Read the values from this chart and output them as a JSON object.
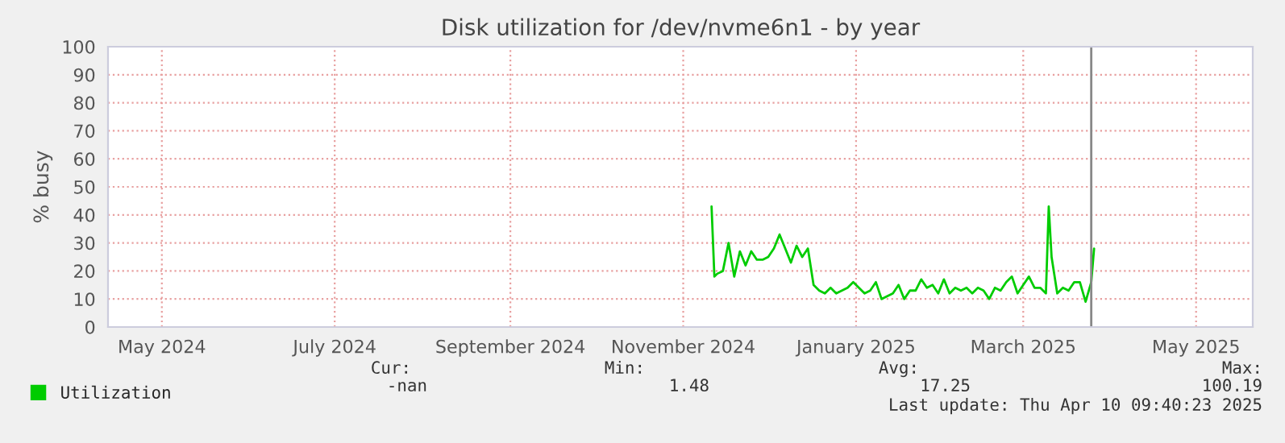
{
  "chart_data": {
    "type": "line",
    "title": "Disk utilization for /dev/nvme6n1 - by year",
    "ylabel": "% busy",
    "x": [
      "2024-11-25",
      "2024-11-26",
      "2024-11-27",
      "2024-11-29",
      "2024-12-01",
      "2024-12-03",
      "2024-12-05",
      "2024-12-07",
      "2024-12-09",
      "2024-12-11",
      "2024-12-13",
      "2024-12-15",
      "2024-12-17",
      "2024-12-19",
      "2024-12-21",
      "2024-12-23",
      "2024-12-25",
      "2024-12-27",
      "2024-12-29",
      "2024-12-31",
      "2025-01-02",
      "2025-01-04",
      "2025-01-06",
      "2025-01-08",
      "2025-01-10",
      "2025-01-12",
      "2025-01-14",
      "2025-01-16",
      "2025-01-18",
      "2025-01-20",
      "2025-01-22",
      "2025-01-24",
      "2025-01-26",
      "2025-01-28",
      "2025-01-30",
      "2025-02-01",
      "2025-02-03",
      "2025-02-05",
      "2025-02-07",
      "2025-02-09",
      "2025-02-11",
      "2025-02-13",
      "2025-02-15",
      "2025-02-17",
      "2025-02-19",
      "2025-02-21",
      "2025-02-23",
      "2025-02-25",
      "2025-02-27",
      "2025-03-01",
      "2025-03-03",
      "2025-03-05",
      "2025-03-07",
      "2025-03-09",
      "2025-03-11",
      "2025-03-13",
      "2025-03-15",
      "2025-03-17",
      "2025-03-19",
      "2025-03-21",
      "2025-03-23",
      "2025-03-24",
      "2025-03-25",
      "2025-03-27",
      "2025-03-29",
      "2025-03-31",
      "2025-04-02",
      "2025-04-04",
      "2025-04-06",
      "2025-04-08",
      "2025-04-09"
    ],
    "series": [
      {
        "name": "Utilization",
        "color": "#00cc00",
        "values": [
          43,
          18,
          19,
          20,
          30,
          18,
          27,
          22,
          27,
          24,
          24,
          25,
          28,
          33,
          28,
          23,
          29,
          25,
          28,
          15,
          13,
          12,
          14,
          12,
          13,
          14,
          16,
          14,
          12,
          13,
          16,
          10,
          11,
          12,
          15,
          10,
          13,
          13,
          17,
          14,
          15,
          12,
          17,
          12,
          14,
          13,
          14,
          12,
          14,
          13,
          10,
          14,
          13,
          16,
          18,
          12,
          15,
          18,
          14,
          14,
          12,
          43,
          25,
          12,
          14,
          13,
          16,
          16,
          9,
          16,
          28
        ]
      }
    ],
    "xlim": [
      "2024-04-26",
      "2025-06-04"
    ],
    "xticks": [
      {
        "value": "2024-05-15",
        "label": "May 2024"
      },
      {
        "value": "2024-07-15",
        "label": "July 2024"
      },
      {
        "value": "2024-09-15",
        "label": "September 2024"
      },
      {
        "value": "2024-11-15",
        "label": "November 2024"
      },
      {
        "value": "2025-01-15",
        "label": "January 2025"
      },
      {
        "value": "2025-03-15",
        "label": "March 2025"
      },
      {
        "value": "2025-05-15",
        "label": "May 2025"
      }
    ],
    "ylim": [
      0,
      100
    ],
    "yticks": [
      0,
      10,
      20,
      30,
      40,
      50,
      60,
      70,
      80,
      90,
      100
    ],
    "ref_lines": [
      {
        "axis": "x",
        "value": "2025-04-08",
        "label": null,
        "color": "#888888"
      }
    ],
    "grid": true,
    "legend": "bottom left",
    "line_style": "solid",
    "marker": "none",
    "annotations": [
      "Cur:",
      "-nan",
      "Min:",
      "1.48",
      "Avg:",
      "17.25",
      "Max:",
      "100.19",
      "Last update: Thu Apr 10 09:40:23 2025"
    ]
  }
}
